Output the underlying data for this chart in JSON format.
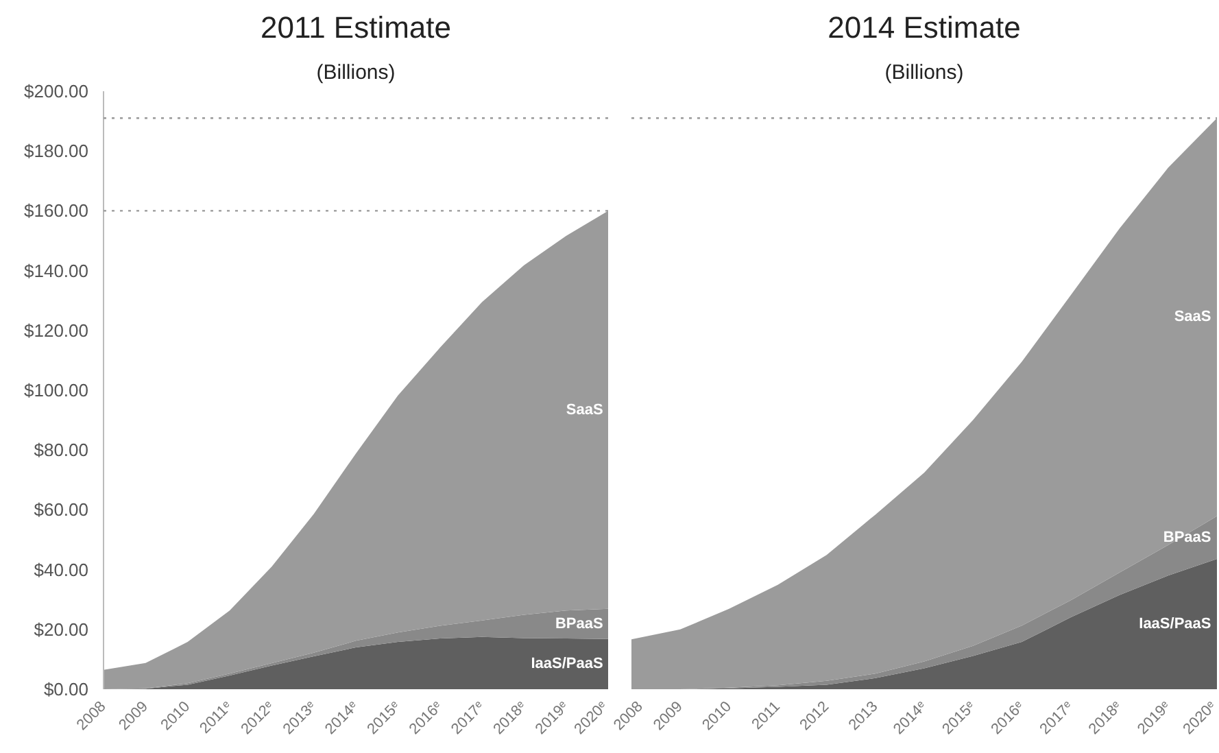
{
  "chart_data": [
    {
      "type": "area",
      "title": "2011 Estimate",
      "subtitle": "(Billions)",
      "stacked": true,
      "grid": false,
      "categories": [
        "2008",
        "2009",
        "2010",
        "2011ᵉ",
        "2012ᵉ",
        "2013ᵉ",
        "2014ᵉ",
        "2015ᵉ",
        "2016ᵉ",
        "2017ᵉ",
        "2018ᵉ",
        "2019ᵉ",
        "2020ᵉ"
      ],
      "ylim": [
        0,
        200
      ],
      "yticks": [
        {
          "value": 0,
          "label": "$0.00"
        },
        {
          "value": 20,
          "label": "$20.00"
        },
        {
          "value": 40,
          "label": "$40.00"
        },
        {
          "value": 60,
          "label": "$60.00"
        },
        {
          "value": 80,
          "label": "$80.00"
        },
        {
          "value": 100,
          "label": "$100.00"
        },
        {
          "value": 120,
          "label": "$120.00"
        },
        {
          "value": 140,
          "label": "$140.00"
        },
        {
          "value": 160,
          "label": "$160.00"
        },
        {
          "value": 180,
          "label": "$180.00"
        },
        {
          "value": 200,
          "label": "$200.00"
        }
      ],
      "series": [
        {
          "name": "IaaS/PaaS",
          "color": "#5f5f5f",
          "values": [
            0,
            0.2,
            1.5,
            4.6,
            7.9,
            11,
            14,
            15.8,
            17,
            17.5,
            17.1,
            17,
            16.8
          ]
        },
        {
          "name": "BPaaS",
          "color": "#898989",
          "values": [
            0,
            0.1,
            0.5,
            0.6,
            0.8,
            1.2,
            2.2,
            3.2,
            4.2,
            5.5,
            7.8,
            9.3,
            10.1
          ]
        },
        {
          "name": "SaaS",
          "color": "#9b9b9b",
          "values": [
            6.5,
            8.5,
            13.8,
            21.1,
            32.3,
            46.4,
            62.6,
            79.2,
            93,
            106.5,
            116.9,
            125.3,
            133.1
          ]
        }
      ],
      "ref_lines": [
        {
          "axis": "y",
          "value": 191,
          "color": "#999999",
          "line_style": "dotted"
        },
        {
          "axis": "y",
          "value": 160,
          "color": "#999999",
          "line_style": "dotted"
        }
      ]
    },
    {
      "type": "area",
      "title": "2014 Estimate",
      "subtitle": "(Billions)",
      "stacked": true,
      "grid": false,
      "tick_labels": "x",
      "categories": [
        "2008",
        "2009",
        "2010",
        "2011",
        "2012",
        "2013",
        "2014ᵉ",
        "2015ᵉ",
        "2016ᵉ",
        "2017ᵉ",
        "2018ᵉ",
        "2019ᵉ",
        "2020ᵉ"
      ],
      "ylim": [
        0,
        200
      ],
      "series": [
        {
          "name": "IaaS/PaaS",
          "color": "#5f5f5f",
          "values": [
            0,
            0,
            0.3,
            0.8,
            1.5,
            3.7,
            7,
            11.1,
            15.8,
            24,
            31.5,
            38,
            43.6
          ]
        },
        {
          "name": "BPaaS",
          "color": "#898989",
          "values": [
            0,
            0,
            0.2,
            0.5,
            1.3,
            1.5,
            2.3,
            3.4,
            5.5,
            5.7,
            7.5,
            10.2,
            14.3
          ]
        },
        {
          "name": "SaaS",
          "color": "#9b9b9b",
          "values": [
            16.7,
            20,
            26.4,
            33.6,
            42.1,
            53.2,
            63.1,
            75.5,
            88.2,
            102,
            115,
            126.2,
            133.1
          ]
        }
      ],
      "ref_lines": [
        {
          "axis": "y",
          "value": 191,
          "color": "#999999",
          "line_style": "dotted"
        }
      ]
    }
  ]
}
